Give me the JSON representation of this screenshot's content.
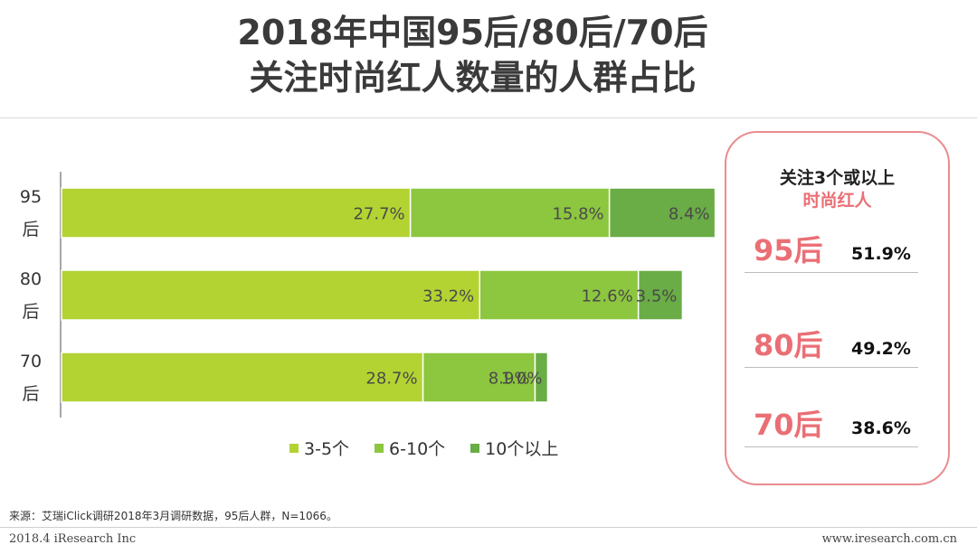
{
  "title_line1": "2018年中国95后/80后/70后",
  "title_line2": "关注时尚红人数量的人群占比",
  "chart_data": {
    "type": "bar",
    "orientation": "horizontal",
    "stacked": true,
    "categories": [
      "95后",
      "80后",
      "70后"
    ],
    "series": [
      {
        "name": "3-5个",
        "color": "#b3d332",
        "values": [
          27.7,
          33.2,
          28.7
        ],
        "labels": [
          "27.7%",
          "33.2%",
          "28.7%"
        ]
      },
      {
        "name": "6-10个",
        "color": "#8dc63f",
        "values": [
          15.8,
          12.6,
          8.9
        ],
        "labels": [
          "15.8%",
          "12.6%",
          "8.9%"
        ]
      },
      {
        "name": "10个以上",
        "color": "#6aac45",
        "values": [
          8.4,
          3.5,
          1.0
        ],
        "labels": [
          "8.4%",
          "3.5%",
          "1.0%"
        ]
      }
    ],
    "xlim": [
      0,
      52
    ],
    "legend_position": "bottom",
    "grid": false
  },
  "panel": {
    "heading1": "关注3个或以上",
    "heading2": "时尚红人",
    "rows": [
      {
        "gen": "95后",
        "pct": "51.9%"
      },
      {
        "gen": "80后",
        "pct": "49.2%"
      },
      {
        "gen": "70后",
        "pct": "38.6%"
      }
    ],
    "border_color": "#ea8c8f",
    "accent_color": "#ea6f75"
  },
  "footer": {
    "source": "来源：艾瑞iClick调研2018年3月调研数据，95后人群，N=1066。",
    "copyright": "2018.4 iResearch Inc",
    "site": "www.iresearch.com.cn"
  }
}
